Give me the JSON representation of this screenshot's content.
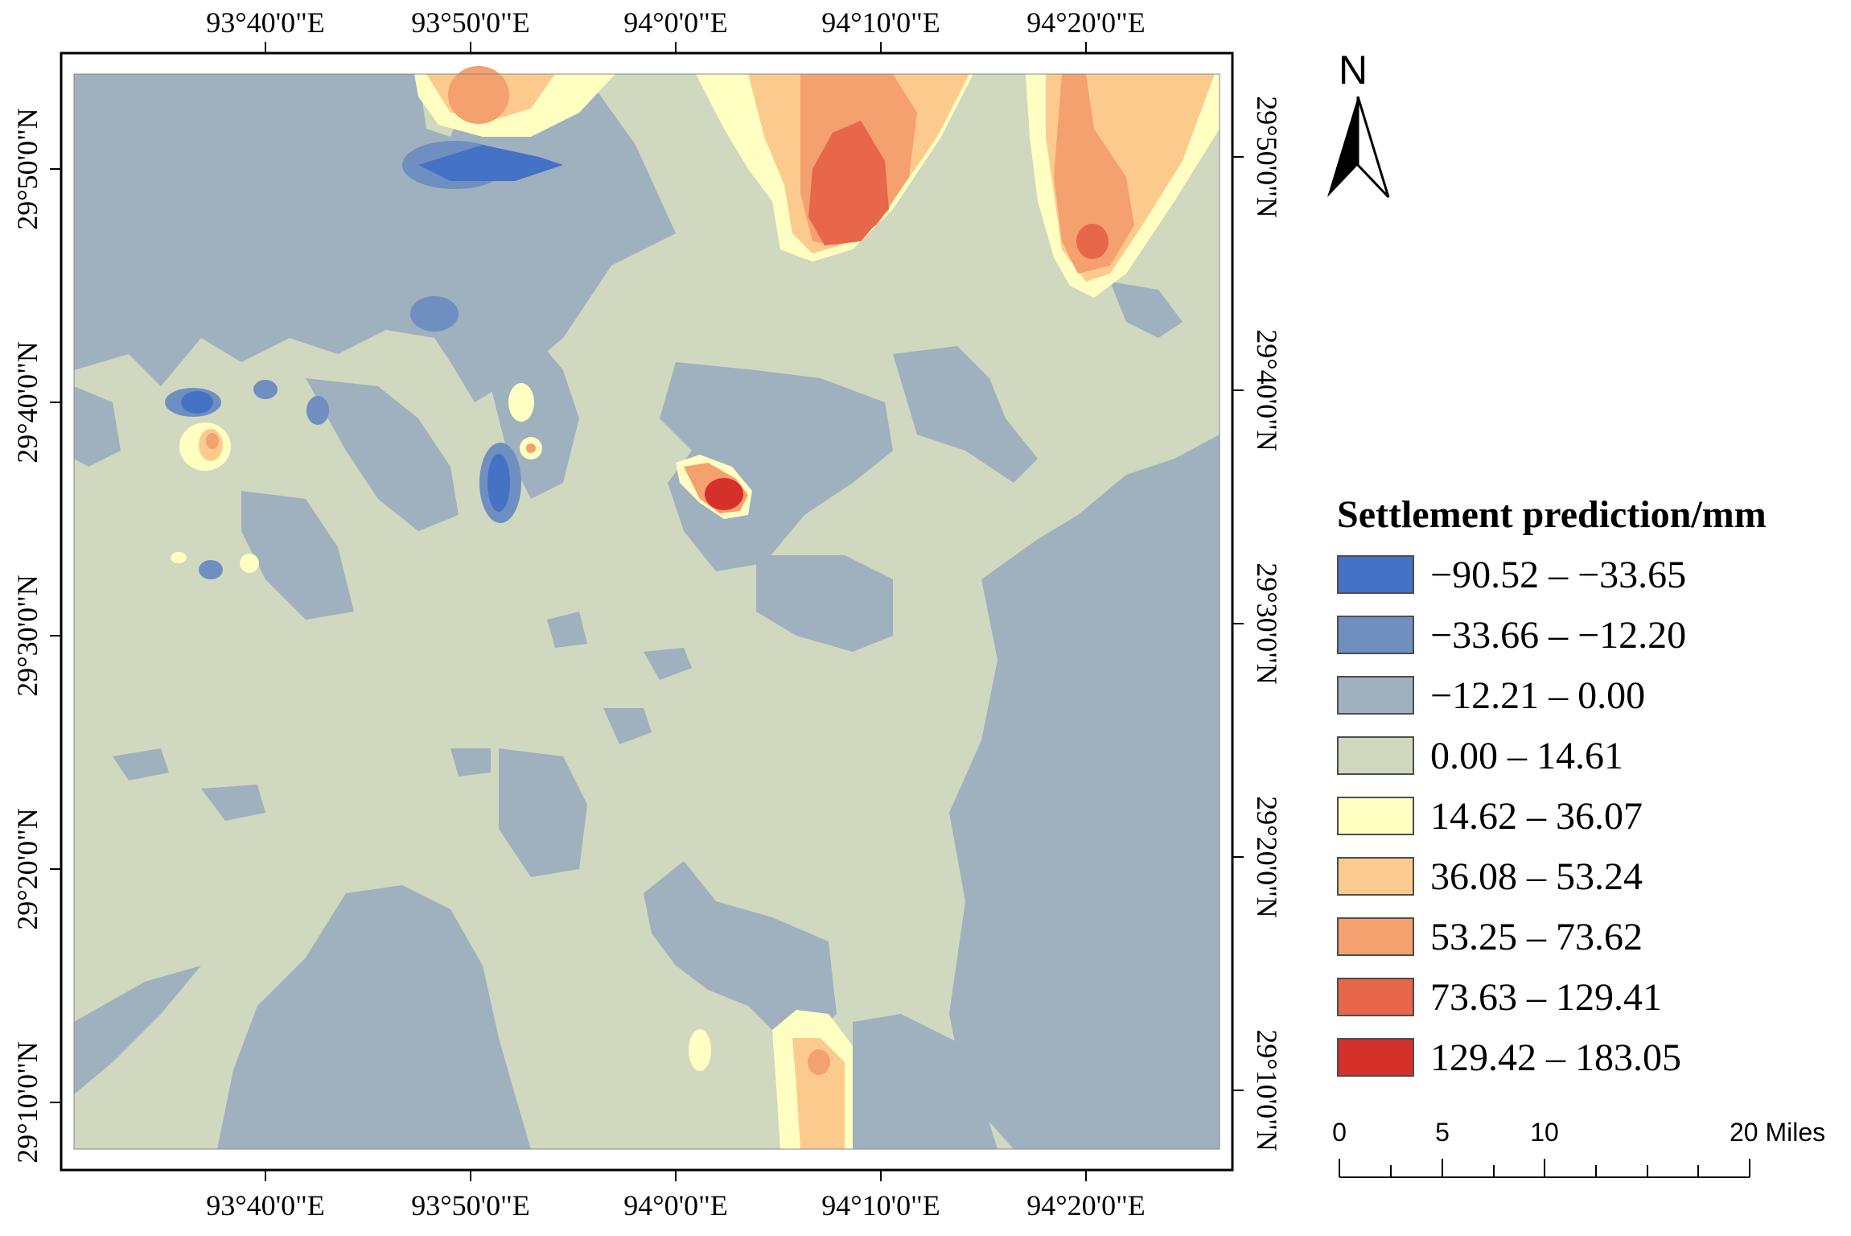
{
  "colors": {
    "frame": "#000000",
    "background_class": "#d0d8bf",
    "class_colors": [
      "#4472c4",
      "#6f8fc1",
      "#9fb0bf",
      "#d0d8bf",
      "#ffffc2",
      "#fdca8e",
      "#f4a06f",
      "#e8664a",
      "#d6302a"
    ]
  },
  "top_axis_labels": [
    "93°40'0\"E",
    "93°50'0\"E",
    "94°0'0\"E",
    "94°10'0\"E",
    "94°20'0\"E"
  ],
  "bottom_axis_labels": [
    "93°40'0\"E",
    "93°50'0\"E",
    "94°0'0\"E",
    "94°10'0\"E",
    "94°20'0\"E"
  ],
  "left_axis_labels": [
    "29°50'0\"N",
    "29°40'0\"N",
    "29°30'0\"N",
    "29°20'0\"N",
    "29°10'0\"N"
  ],
  "right_axis_labels": [
    "29°50'0\"N",
    "29°40'0\"N",
    "29°30'0\"N",
    "29°20'0\"N",
    "29°10'0\"N"
  ],
  "north_arrow": {
    "letter": "N",
    "icon": "north-arrow-icon"
  },
  "legend": {
    "title": "Settlement prediction/mm",
    "items": [
      {
        "label": "−90.52 – −33.65",
        "color": "#4472c4"
      },
      {
        "label": "−33.66 – −12.20",
        "color": "#6f8fc1"
      },
      {
        "label": "−12.21 – 0.00",
        "color": "#9fb0bf"
      },
      {
        "label": "0.00 – 14.61",
        "color": "#d0d8bf"
      },
      {
        "label": "14.62 – 36.07",
        "color": "#ffffc2"
      },
      {
        "label": "36.08 – 53.24",
        "color": "#fdca8e"
      },
      {
        "label": "53.25 – 73.62",
        "color": "#f4a06f"
      },
      {
        "label": "73.63 – 129.41",
        "color": "#e8664a"
      },
      {
        "label": "129.42 – 183.05",
        "color": "#d6302a"
      }
    ]
  },
  "scale_bar": {
    "labels": [
      "0",
      "5",
      "10",
      "20 Miles"
    ]
  }
}
